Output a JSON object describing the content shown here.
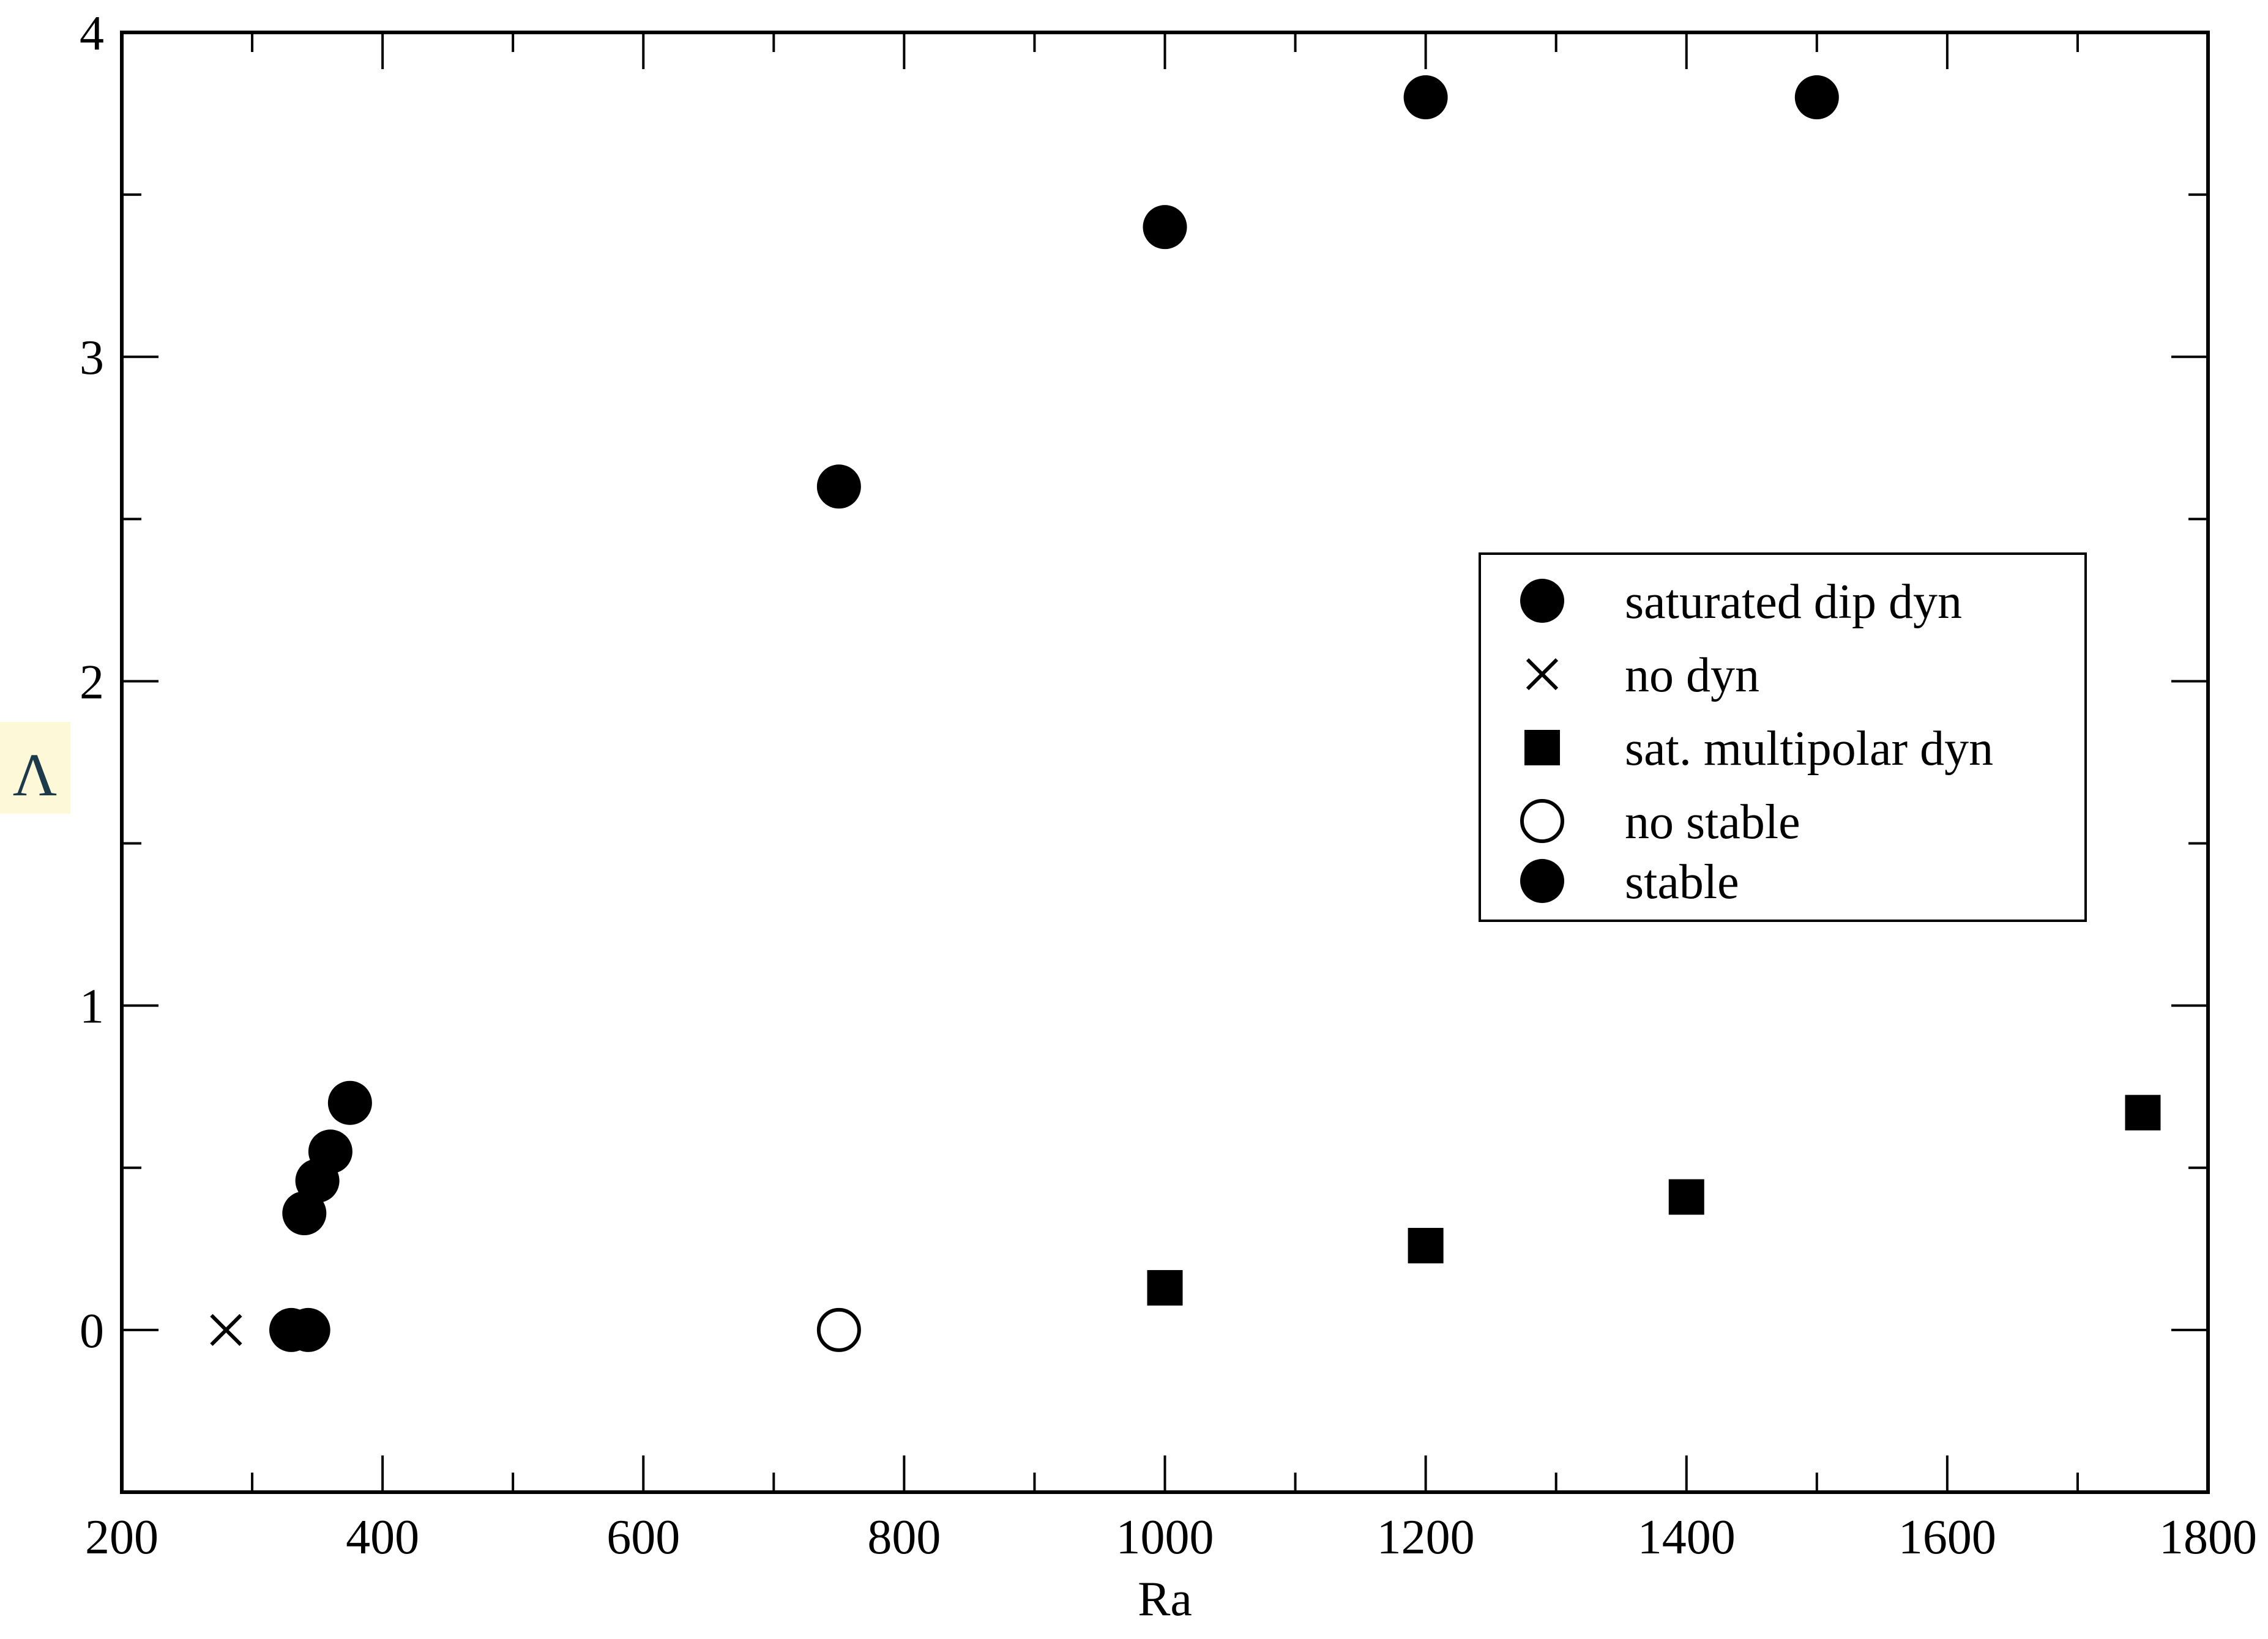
{
  "chart_data": {
    "type": "scatter",
    "title": "",
    "xlabel": "Ra",
    "ylabel": "Λ",
    "xlim": [
      200,
      1800
    ],
    "ylim": [
      -0.5,
      4
    ],
    "x_ticks": [
      200,
      400,
      600,
      800,
      1000,
      1200,
      1400,
      1600,
      1800
    ],
    "x_tick_labels": [
      "200",
      "400",
      "600",
      "800",
      "1000",
      "1200",
      "1400",
      "1600",
      "1800"
    ],
    "x_minor_ticks": [
      300,
      500,
      700,
      900,
      1100,
      1300,
      1500,
      1700
    ],
    "y_ticks": [
      0,
      1,
      2,
      3,
      4
    ],
    "y_tick_labels": [
      "0",
      "1",
      "2",
      "3",
      "4"
    ],
    "y_minor_ticks": [
      -0.5,
      0.5,
      1.5,
      2.5,
      3.5
    ],
    "grid": false,
    "legend_position": "center-right",
    "ylabel_highlight_color": "#fdf8d8",
    "ylabel_color": "#1c3a4a",
    "series": [
      {
        "name": "saturated dip dyn",
        "marker": "filled-circle",
        "color": "#000000",
        "points": [
          {
            "x": 330,
            "y": 0
          },
          {
            "x": 343,
            "y": 0
          },
          {
            "x": 340,
            "y": 0.36
          },
          {
            "x": 350,
            "y": 0.46
          },
          {
            "x": 360,
            "y": 0.55
          },
          {
            "x": 375,
            "y": 0.7
          },
          {
            "x": 750,
            "y": 2.6
          },
          {
            "x": 1000,
            "y": 3.4
          },
          {
            "x": 1200,
            "y": 3.8
          },
          {
            "x": 1500,
            "y": 3.8
          }
        ]
      },
      {
        "name": "no dyn",
        "marker": "cross",
        "color": "#000000",
        "points": [
          {
            "x": 280,
            "y": 0
          }
        ]
      },
      {
        "name": "sat. multipolar dyn",
        "marker": "filled-square",
        "color": "#000000",
        "points": [
          {
            "x": 1000,
            "y": 0.13
          },
          {
            "x": 1200,
            "y": 0.26
          },
          {
            "x": 1400,
            "y": 0.41
          },
          {
            "x": 1750,
            "y": 0.67
          }
        ]
      },
      {
        "name": "no stable",
        "marker": "open-circle",
        "color": "#000000",
        "points": [
          {
            "x": 750,
            "y": 0
          }
        ]
      },
      {
        "name": "stable",
        "marker": "filled-circle",
        "color": "#000000",
        "points": []
      }
    ]
  }
}
